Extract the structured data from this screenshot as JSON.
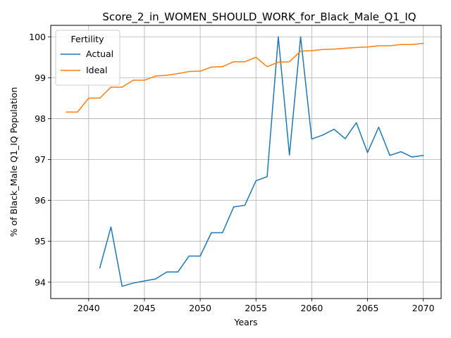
{
  "chart_data": {
    "type": "line",
    "title": "Score_2_in_WOMEN_SHOULD_WORK_for_Black_Male_Q1_IQ",
    "xlabel": "Years",
    "ylabel": "% of Black_Male Q1_IQ Population",
    "xlim": [
      2036.6,
      2071.6
    ],
    "ylim": [
      93.6,
      100.28
    ],
    "xticks": [
      2040,
      2045,
      2050,
      2055,
      2060,
      2065,
      2070
    ],
    "yticks": [
      94,
      95,
      96,
      97,
      98,
      99,
      100
    ],
    "grid": true,
    "legend": {
      "title": "Fertility",
      "placement": "upper-left"
    },
    "series": [
      {
        "name": "Actual",
        "color": "#1f77b4",
        "x": [
          2041,
          2042,
          2043,
          2044,
          2045,
          2046,
          2047,
          2048,
          2049,
          2050,
          2051,
          2052,
          2053,
          2054,
          2055,
          2056,
          2057,
          2058,
          2059,
          2060,
          2061,
          2062,
          2063,
          2064,
          2065,
          2066,
          2067,
          2068,
          2069,
          2070
        ],
        "values": [
          94.35,
          95.35,
          93.9,
          93.98,
          94.03,
          94.08,
          94.25,
          94.25,
          94.64,
          94.64,
          95.21,
          95.21,
          95.84,
          95.88,
          96.48,
          96.58,
          100.0,
          97.11,
          100.0,
          97.5,
          97.6,
          97.74,
          97.51,
          97.9,
          97.17,
          97.79,
          97.1,
          97.19,
          97.06,
          97.1
        ]
      },
      {
        "name": "Ideal",
        "color": "#ff7f0e",
        "x": [
          2038,
          2039,
          2040,
          2041,
          2042,
          2043,
          2044,
          2045,
          2046,
          2047,
          2048,
          2049,
          2050,
          2051,
          2052,
          2053,
          2054,
          2055,
          2056,
          2057,
          2058,
          2059,
          2060,
          2061,
          2062,
          2063,
          2064,
          2065,
          2066,
          2067,
          2068,
          2069,
          2070
        ],
        "values": [
          98.16,
          98.16,
          98.5,
          98.5,
          98.77,
          98.77,
          98.94,
          98.94,
          99.04,
          99.06,
          99.1,
          99.15,
          99.16,
          99.26,
          99.27,
          99.39,
          99.39,
          99.5,
          99.27,
          99.38,
          99.39,
          99.65,
          99.66,
          99.69,
          99.7,
          99.72,
          99.74,
          99.75,
          99.78,
          99.78,
          99.81,
          99.81,
          99.84
        ]
      }
    ]
  }
}
